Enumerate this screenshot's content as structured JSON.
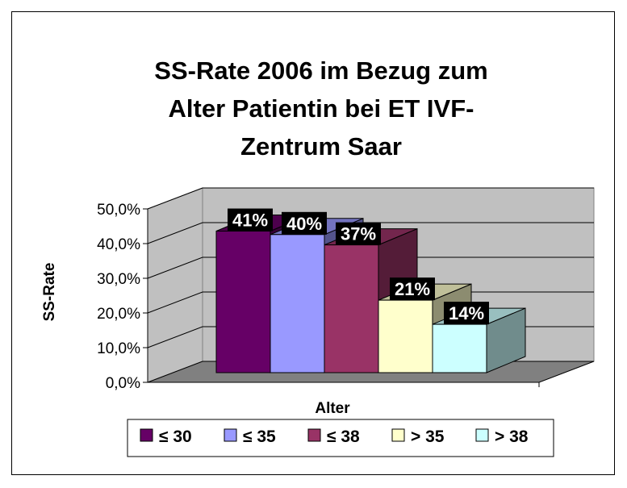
{
  "chart_data": {
    "type": "bar",
    "title_lines": [
      "SS-Rate 2006 im Bezug zum",
      "Alter Patientin bei ET IVF-",
      "Zentrum Saar"
    ],
    "xlabel": "Alter",
    "ylabel": "SS-Rate",
    "ylim": [
      0,
      50
    ],
    "yticks": [
      "0,0%",
      "10,0%",
      "20,0%",
      "30,0%",
      "40,0%",
      "50,0%"
    ],
    "grid": true,
    "legend_position": "bottom",
    "series": [
      {
        "name": "≤ 30",
        "value": 41,
        "label": "41%",
        "color": "#660066"
      },
      {
        "name": "≤ 35",
        "value": 40,
        "label": "40%",
        "color": "#9999ff"
      },
      {
        "name": "≤ 38",
        "value": 37,
        "label": "37%",
        "color": "#993366"
      },
      {
        "name": "> 35",
        "value": 21,
        "label": "21%",
        "color": "#ffffcc"
      },
      {
        "name": "> 38",
        "value": 14,
        "label": "14%",
        "color": "#ccffff"
      }
    ],
    "colors": {
      "wall": "#c0c0c0",
      "floor": "#808080",
      "gridline": "#000000"
    }
  }
}
